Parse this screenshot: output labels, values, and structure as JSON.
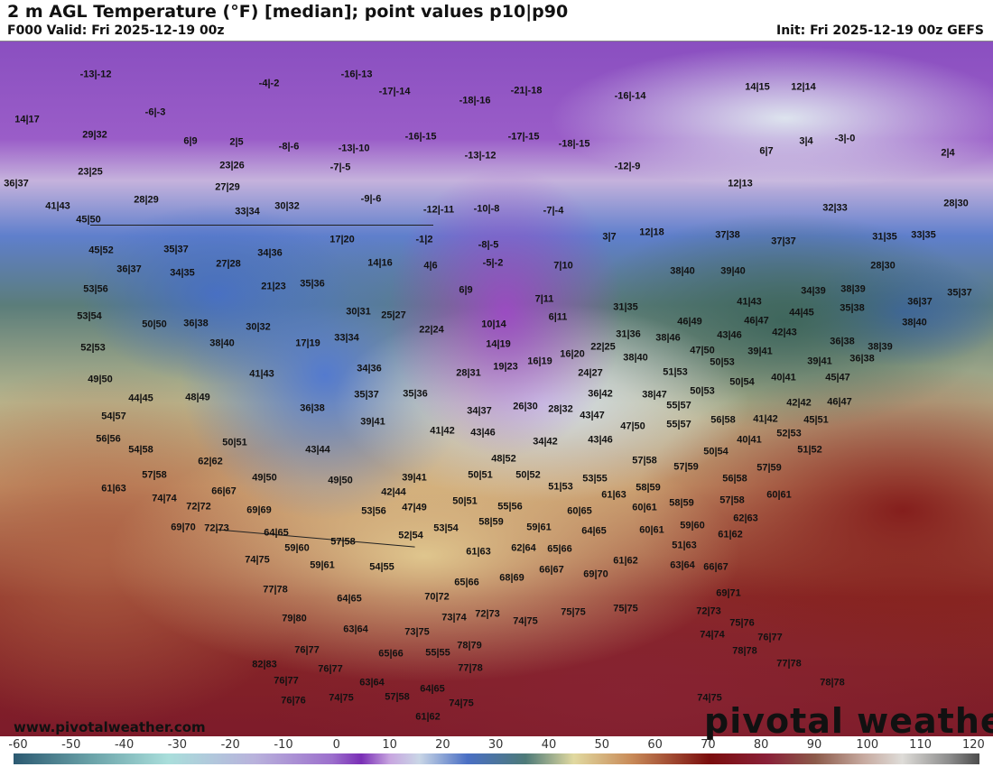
{
  "header": {
    "title": "2 m AGL Temperature (°F) [median]; point values p10|p90",
    "valid": "F000 Valid: Fri 2025-12-19 00z",
    "init": "Init: Fri 2025-12-19 00z GEFS"
  },
  "watermark": {
    "url": "www.pivotalweather.com",
    "logo": "pivotal weather"
  },
  "colorbar": {
    "ticks": [
      "-60",
      "-50",
      "-40",
      "-30",
      "-20",
      "-10",
      "0",
      "10",
      "20",
      "30",
      "40",
      "50",
      "60",
      "70",
      "80",
      "90",
      "100",
      "110",
      "120"
    ]
  },
  "points": [
    "-13|-12",
    "-4|-2",
    "-6|-3",
    "14|17",
    "29|32",
    "6|9",
    "2|5",
    "-8|-6",
    "23|25",
    "23|26",
    "27|29",
    "28|29",
    "36|37",
    "41|43",
    "33|34",
    "30|32",
    "45|50",
    "45|52",
    "35|37",
    "34|36",
    "27|28",
    "36|37",
    "34|35",
    "53|56",
    "21|23",
    "35|36",
    "-16|-13",
    "-17|-14",
    "-18|-16",
    "-21|-18",
    "-16|-14",
    "-16|-15",
    "-13|-10",
    "-7|-5",
    "-13|-12",
    "-17|-15",
    "-18|-15",
    "-12|-9",
    "-9|-6",
    "-12|-11",
    "-10|-8",
    "-7|-4",
    "17|20",
    "-1|2",
    "-8|-5",
    "14|16",
    "4|6",
    "-5|-2",
    "7|10",
    "3|7",
    "12|18",
    "14|15",
    "12|14",
    "3|4",
    "-3|-0",
    "6|7",
    "2|4",
    "12|13",
    "32|33",
    "28|30",
    "37|38",
    "37|37",
    "31|35",
    "33|35",
    "28|30",
    "38|40",
    "39|40",
    "34|39",
    "38|39",
    "41|43",
    "35|38",
    "36|37",
    "35|37",
    "46|49",
    "46|47",
    "44|45",
    "38|46",
    "43|46",
    "42|43",
    "38|40",
    "47|50",
    "39|41",
    "36|38",
    "38|39",
    "51|53",
    "50|53",
    "40|41",
    "39|41",
    "36|38",
    "45|47",
    "38|47",
    "50|53",
    "50|54",
    "55|57",
    "42|42",
    "46|47",
    "56|58",
    "41|42",
    "45|51",
    "55|57",
    "40|41",
    "52|53",
    "51|52",
    "50|54",
    "57|59",
    "57|59",
    "56|58",
    "60|61",
    "57|58",
    "62|63",
    "61|62",
    "31|35",
    "31|36",
    "38|40",
    "6|9",
    "7|11",
    "6|11",
    "10|14",
    "14|19",
    "16|19",
    "16|20",
    "22|25",
    "19|23",
    "24|27",
    "22|24",
    "25|27",
    "30|31",
    "33|34",
    "17|19",
    "30|32",
    "38|40",
    "36|38",
    "50|50",
    "53|54",
    "52|53",
    "28|31",
    "34|36",
    "35|37",
    "35|36",
    "36|42",
    "49|50",
    "44|45",
    "48|49",
    "41|43",
    "36|38",
    "39|41",
    "34|37",
    "26|30",
    "28|32",
    "43|47",
    "41|42",
    "43|46",
    "47|50",
    "34|42",
    "43|46",
    "54|57",
    "56|56",
    "54|58",
    "50|51",
    "43|44",
    "62|62",
    "57|58",
    "49|50",
    "49|50",
    "39|41",
    "48|52",
    "57|58",
    "50|51",
    "50|52",
    "53|55",
    "51|53",
    "61|63",
    "58|59",
    "58|59",
    "61|63",
    "66|67",
    "74|74",
    "72|72",
    "42|44",
    "50|51",
    "55|56",
    "69|69",
    "53|56",
    "47|49",
    "60|65",
    "60|61",
    "69|70",
    "72|73",
    "64|65",
    "53|54",
    "58|59",
    "59|61",
    "64|65",
    "59|60",
    "60|61",
    "59|60",
    "57|58",
    "52|54",
    "51|63",
    "74|75",
    "59|61",
    "54|55",
    "61|63",
    "62|64",
    "65|66",
    "61|62",
    "63|64",
    "66|67",
    "66|67",
    "68|69",
    "69|70",
    "77|78",
    "64|65",
    "65|66",
    "70|72",
    "69|71",
    "79|80",
    "63|64",
    "73|74",
    "72|73",
    "74|75",
    "75|75",
    "75|75",
    "72|73",
    "75|76",
    "74|74",
    "76|77",
    "78|78",
    "73|75",
    "76|77",
    "82|83",
    "65|66",
    "55|55",
    "78|79",
    "76|77",
    "77|78",
    "77|78",
    "76|77",
    "63|64",
    "64|65",
    "78|78",
    "74|75",
    "57|58",
    "74|75",
    "76|76",
    "74|75",
    "61|62"
  ]
}
